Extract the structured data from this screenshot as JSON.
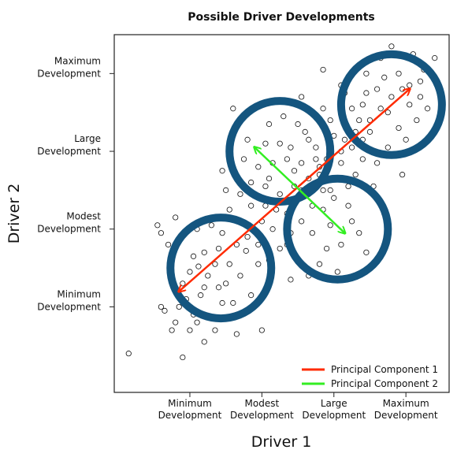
{
  "chart_data": {
    "type": "scatter",
    "title": "Possible Driver Developments",
    "xlabel": "Driver 1",
    "ylabel": "Driver 2",
    "xlim": [
      -0.55,
      4.1
    ],
    "ylim": [
      -0.6,
      4.0
    ],
    "grid": false,
    "legend_position": "bottom-right",
    "colors": {
      "pc1": "#ff2a00",
      "pc2": "#33ee22",
      "circle": "#14557f",
      "points": "#111111"
    },
    "x_ticks": [
      {
        "value": 0.5,
        "lines": [
          "Minimum",
          "Development"
        ]
      },
      {
        "value": 1.5,
        "lines": [
          "Modest",
          "Development"
        ]
      },
      {
        "value": 2.5,
        "lines": [
          "Large",
          "Development"
        ]
      },
      {
        "value": 3.5,
        "lines": [
          "Maximum",
          "Development"
        ]
      }
    ],
    "y_ticks": [
      {
        "value": 0.5,
        "lines": [
          "Minimum",
          "Development"
        ]
      },
      {
        "value": 1.5,
        "lines": [
          "Modest",
          "Development"
        ]
      },
      {
        "value": 2.5,
        "lines": [
          "Large",
          "Development"
        ]
      },
      {
        "value": 3.5,
        "lines": [
          "Maximum",
          "Development"
        ]
      }
    ],
    "series": [
      {
        "name": "Principal Component 1",
        "type": "arrow",
        "color": "#ff2a00",
        "from": {
          "x": 0.35,
          "y": 0.7
        },
        "to": {
          "x": 3.55,
          "y": 3.3
        }
      },
      {
        "name": "Principal Component 2",
        "type": "arrow",
        "color": "#33ee22",
        "from": {
          "x": 1.4,
          "y": 2.55
        },
        "to": {
          "x": 2.65,
          "y": 1.45
        }
      }
    ],
    "circles": [
      {
        "cx": 0.93,
        "cy": 1.0,
        "r": 0.7
      },
      {
        "cx": 1.75,
        "cy": 2.5,
        "r": 0.7
      },
      {
        "cx": 2.55,
        "cy": 1.5,
        "r": 0.7
      },
      {
        "cx": 3.3,
        "cy": 3.1,
        "r": 0.7
      }
    ],
    "points": [
      [
        -0.35,
        -0.1
      ],
      [
        0.4,
        -0.15
      ],
      [
        0.85,
        0.2
      ],
      [
        0.3,
        0.3
      ],
      [
        0.55,
        0.4
      ],
      [
        0.5,
        0.95
      ],
      [
        0.62,
        1.02
      ],
      [
        0.9,
        0.75
      ],
      [
        0.7,
        1.2
      ],
      [
        1.1,
        0.55
      ],
      [
        1.2,
        0.9
      ],
      [
        1.28,
        1.22
      ],
      [
        0.95,
        1.45
      ],
      [
        1.3,
        1.55
      ],
      [
        1.45,
        1.3
      ],
      [
        1.55,
        1.8
      ],
      [
        1.65,
        1.5
      ],
      [
        1.4,
        1.95
      ],
      [
        1.75,
        1.95
      ],
      [
        1.85,
        1.7
      ],
      [
        1.6,
        2.15
      ],
      [
        1.95,
        2.05
      ],
      [
        2.05,
        2.35
      ],
      [
        2.15,
        1.95
      ],
      [
        1.9,
        2.55
      ],
      [
        2.25,
        2.55
      ],
      [
        2.3,
        2.2
      ],
      [
        2.45,
        2.0
      ],
      [
        2.1,
        2.75
      ],
      [
        2.5,
        2.7
      ],
      [
        2.4,
        2.4
      ],
      [
        2.6,
        2.35
      ],
      [
        2.65,
        2.85
      ],
      [
        2.85,
        2.9
      ],
      [
        2.75,
        2.55
      ],
      [
        2.9,
        3.1
      ],
      [
        3.0,
        2.75
      ],
      [
        3.1,
        3.3
      ],
      [
        3.25,
        3.0
      ],
      [
        3.4,
        3.5
      ],
      [
        3.55,
        3.1
      ],
      [
        3.6,
        3.75
      ],
      [
        3.75,
        3.55
      ],
      [
        3.7,
        3.2
      ],
      [
        2.0,
        1.1
      ],
      [
        2.2,
        1.45
      ],
      [
        2.4,
        1.25
      ],
      [
        2.75,
        1.6
      ],
      [
        2.35,
        1.75
      ],
      [
        1.8,
        2.95
      ],
      [
        1.55,
        2.6
      ],
      [
        1.25,
        2.4
      ],
      [
        1.0,
        2.0
      ],
      [
        1.05,
        1.75
      ],
      [
        0.8,
        1.55
      ],
      [
        0.65,
        0.65
      ],
      [
        0.45,
        0.6
      ],
      [
        0.35,
        0.5
      ],
      [
        0.25,
        1.1
      ],
      [
        0.6,
        0.3
      ],
      [
        1.0,
        0.35
      ],
      [
        1.15,
        0.15
      ],
      [
        1.5,
        0.2
      ],
      [
        1.35,
        0.65
      ],
      [
        2.15,
        0.9
      ],
      [
        2.55,
        0.95
      ],
      [
        2.95,
        1.2
      ],
      [
        3.2,
        1.7
      ],
      [
        3.05,
        2.05
      ],
      [
        3.35,
        2.45
      ],
      [
        3.5,
        2.65
      ],
      [
        3.65,
        2.9
      ],
      [
        3.9,
        3.7
      ],
      [
        2.6,
        3.35
      ],
      [
        2.35,
        3.05
      ],
      [
        2.05,
        3.2
      ],
      [
        1.7,
        3.15
      ],
      [
        0.05,
        1.55
      ],
      [
        0.1,
        1.45
      ],
      [
        0.2,
        1.3
      ],
      [
        1.1,
        3.05
      ],
      [
        2.35,
        3.55
      ],
      [
        2.65,
        3.25
      ],
      [
        2.95,
        3.5
      ],
      [
        3.15,
        3.7
      ],
      [
        3.3,
        3.85
      ],
      [
        2.8,
        2.2
      ],
      [
        2.9,
        2.4
      ],
      [
        1.65,
        2.35
      ],
      [
        1.35,
        2.1
      ],
      [
        1.2,
        1.95
      ],
      [
        0.9,
        1.25
      ],
      [
        0.75,
        0.9
      ],
      [
        0.55,
        1.15
      ],
      [
        0.4,
        0.8
      ],
      [
        0.15,
        0.45
      ],
      [
        0.1,
        0.5
      ],
      [
        0.95,
        0.55
      ],
      [
        1.05,
        1.05
      ],
      [
        1.45,
        1.05
      ],
      [
        1.75,
        1.25
      ],
      [
        1.9,
        1.45
      ],
      [
        2.05,
        1.6
      ],
      [
        2.2,
        1.8
      ],
      [
        2.5,
        1.9
      ],
      [
        2.7,
        2.05
      ],
      [
        2.55,
        2.15
      ],
      [
        2.35,
        2.0
      ],
      [
        2.15,
        2.15
      ],
      [
        1.95,
        2.25
      ],
      [
        2.25,
        2.4
      ],
      [
        2.45,
        2.55
      ],
      [
        2.65,
        2.65
      ],
      [
        2.8,
        2.75
      ],
      [
        3.0,
        2.9
      ],
      [
        3.15,
        3.05
      ],
      [
        3.3,
        3.2
      ],
      [
        3.45,
        3.3
      ],
      [
        2.05,
        2.0
      ],
      [
        2.3,
        2.3
      ],
      [
        2.6,
        2.5
      ],
      [
        2.9,
        2.65
      ],
      [
        1.85,
        2.4
      ],
      [
        2.15,
        2.65
      ],
      [
        2.45,
        2.9
      ],
      [
        2.75,
        3.05
      ],
      [
        1.5,
        1.6
      ],
      [
        1.7,
        1.75
      ],
      [
        1.3,
        1.4
      ],
      [
        1.15,
        1.3
      ],
      [
        0.85,
        1.05
      ],
      [
        0.7,
        0.75
      ],
      [
        1.6,
        1.1
      ],
      [
        1.85,
        1.3
      ],
      [
        2.6,
        1.3
      ],
      [
        2.85,
        1.45
      ],
      [
        3.1,
        2.35
      ],
      [
        3.25,
        2.55
      ],
      [
        3.4,
        2.8
      ],
      [
        3.55,
        3.35
      ],
      [
        3.7,
        3.4
      ],
      [
        3.2,
        3.45
      ],
      [
        2.95,
        3.25
      ],
      [
        3.8,
        3.05
      ],
      [
        3.45,
        2.2
      ],
      [
        2.45,
        1.55
      ],
      [
        2.7,
        1.8
      ],
      [
        1.0,
        0.8
      ],
      [
        0.5,
        0.2
      ],
      [
        0.25,
        0.2
      ],
      [
        0.7,
        0.05
      ],
      [
        1.2,
        0.4
      ],
      [
        1.9,
        0.85
      ],
      [
        2.3,
        1.05
      ],
      [
        0.3,
        1.65
      ],
      [
        0.6,
        1.5
      ],
      [
        1.35,
        1.8
      ],
      [
        1.55,
        2.05
      ],
      [
        1.45,
        2.3
      ],
      [
        1.75,
        2.6
      ],
      [
        2.0,
        2.85
      ],
      [
        2.25,
        2.95
      ],
      [
        1.6,
        2.85
      ],
      [
        1.3,
        2.65
      ],
      [
        0.95,
        2.25
      ]
    ]
  },
  "legend": {
    "items": [
      {
        "label": "Principal Component 1",
        "color": "#ff2a00"
      },
      {
        "label": "Principal Component 2",
        "color": "#33ee22"
      }
    ]
  }
}
